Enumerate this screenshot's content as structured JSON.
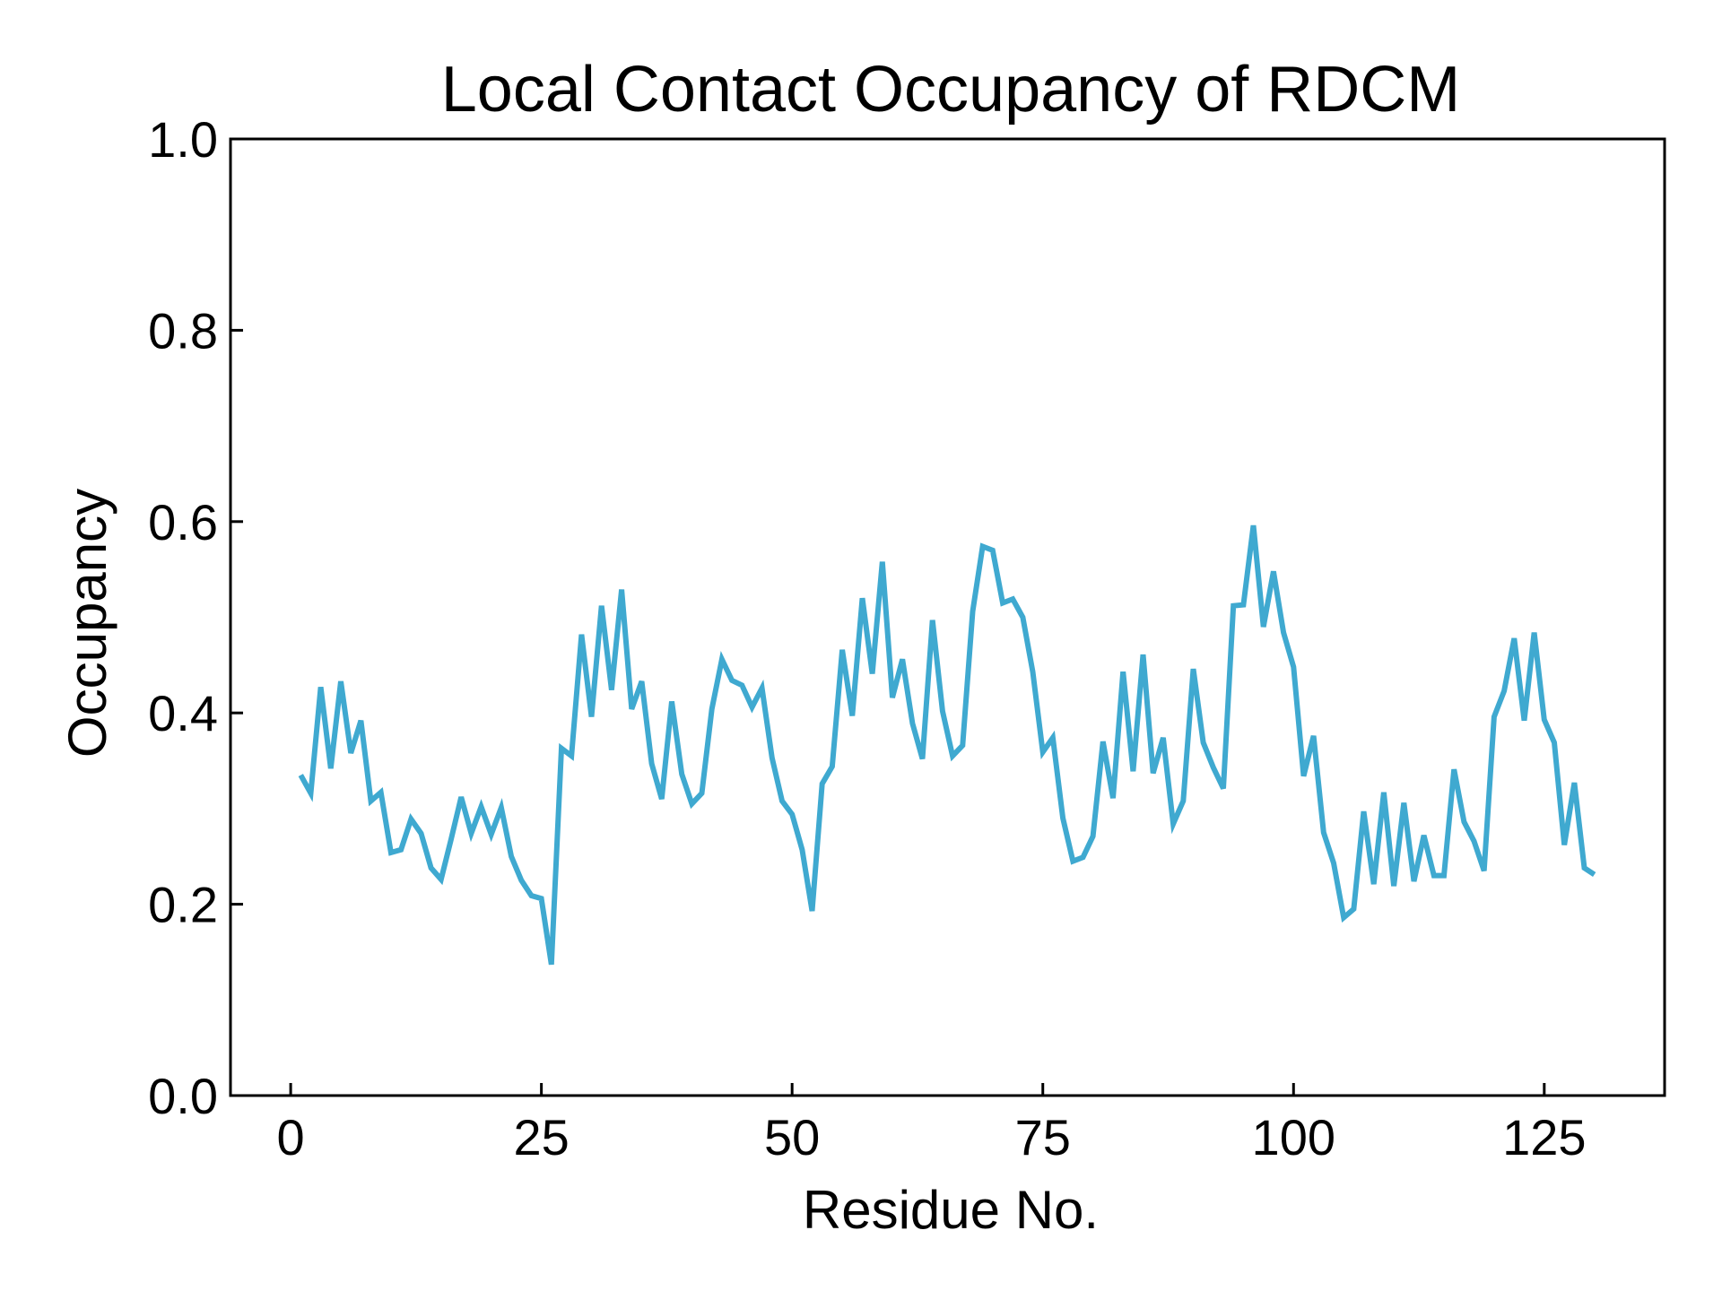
{
  "chart_data": {
    "type": "line",
    "title": "Local Contact Occupancy of RDCM",
    "xlabel": "Residue No.",
    "ylabel": "Occupancy",
    "xlim": [
      -6,
      137
    ],
    "ylim": [
      0.0,
      1.0
    ],
    "xticks": [
      0,
      25,
      50,
      75,
      100,
      125
    ],
    "xtick_labels": [
      "0",
      "25",
      "50",
      "75",
      "100",
      "125"
    ],
    "yticks": [
      0.0,
      0.2,
      0.4,
      0.6,
      0.8,
      1.0
    ],
    "ytick_labels": [
      "0.0",
      "0.2",
      "0.4",
      "0.6",
      "0.8",
      "1.0"
    ],
    "grid": false,
    "line_color": "#3fa9d0",
    "series": [
      {
        "x": [
          1,
          2,
          3,
          4,
          5,
          6,
          7,
          8,
          9,
          10,
          11,
          12,
          13,
          14,
          15,
          16,
          17,
          18,
          19,
          20,
          21,
          22,
          23,
          24,
          25,
          26,
          27,
          28,
          29,
          30,
          31,
          32,
          33,
          34,
          35,
          36,
          37,
          38,
          39,
          40,
          41,
          42,
          43,
          44,
          45,
          46,
          47,
          48,
          49,
          50,
          51,
          52,
          53,
          54,
          55,
          56,
          57,
          58,
          59,
          60,
          61,
          62,
          63,
          64,
          65,
          66,
          67,
          68,
          69,
          70,
          71,
          72,
          73,
          74,
          75,
          76,
          77,
          78,
          79,
          80,
          81,
          82,
          83,
          84,
          85,
          86,
          87,
          88,
          89,
          90,
          91,
          92,
          93,
          94,
          95,
          96,
          97,
          98,
          99,
          100,
          101,
          102,
          103,
          104,
          105,
          106,
          107,
          108,
          109,
          110,
          111,
          112,
          113,
          114,
          115,
          116,
          117,
          118,
          119,
          120,
          121,
          122,
          123,
          124,
          125,
          126,
          127,
          128,
          129,
          130
        ],
        "values": [
          0.335,
          0.316,
          0.427,
          0.342,
          0.433,
          0.358,
          0.392,
          0.308,
          0.317,
          0.254,
          0.257,
          0.289,
          0.274,
          0.238,
          0.226,
          0.268,
          0.312,
          0.274,
          0.302,
          0.273,
          0.301,
          0.25,
          0.225,
          0.209,
          0.206,
          0.137,
          0.363,
          0.355,
          0.482,
          0.396,
          0.512,
          0.424,
          0.529,
          0.404,
          0.433,
          0.347,
          0.31,
          0.412,
          0.336,
          0.305,
          0.316,
          0.404,
          0.456,
          0.434,
          0.429,
          0.406,
          0.426,
          0.353,
          0.308,
          0.294,
          0.257,
          0.193,
          0.326,
          0.344,
          0.466,
          0.397,
          0.52,
          0.441,
          0.558,
          0.416,
          0.456,
          0.389,
          0.352,
          0.497,
          0.402,
          0.355,
          0.366,
          0.506,
          0.574,
          0.57,
          0.515,
          0.519,
          0.5,
          0.443,
          0.359,
          0.374,
          0.29,
          0.245,
          0.249,
          0.271,
          0.37,
          0.311,
          0.443,
          0.339,
          0.461,
          0.337,
          0.374,
          0.284,
          0.308,
          0.446,
          0.369,
          0.343,
          0.321,
          0.512,
          0.513,
          0.596,
          0.49,
          0.548,
          0.484,
          0.448,
          0.334,
          0.376,
          0.275,
          0.243,
          0.186,
          0.195,
          0.297,
          0.221,
          0.317,
          0.219,
          0.306,
          0.224,
          0.272,
          0.23,
          0.23,
          0.341,
          0.286,
          0.266,
          0.235,
          0.396,
          0.423,
          0.478,
          0.392,
          0.484,
          0.393,
          0.369,
          0.262,
          0.327,
          0.238,
          0.231
        ]
      }
    ]
  }
}
